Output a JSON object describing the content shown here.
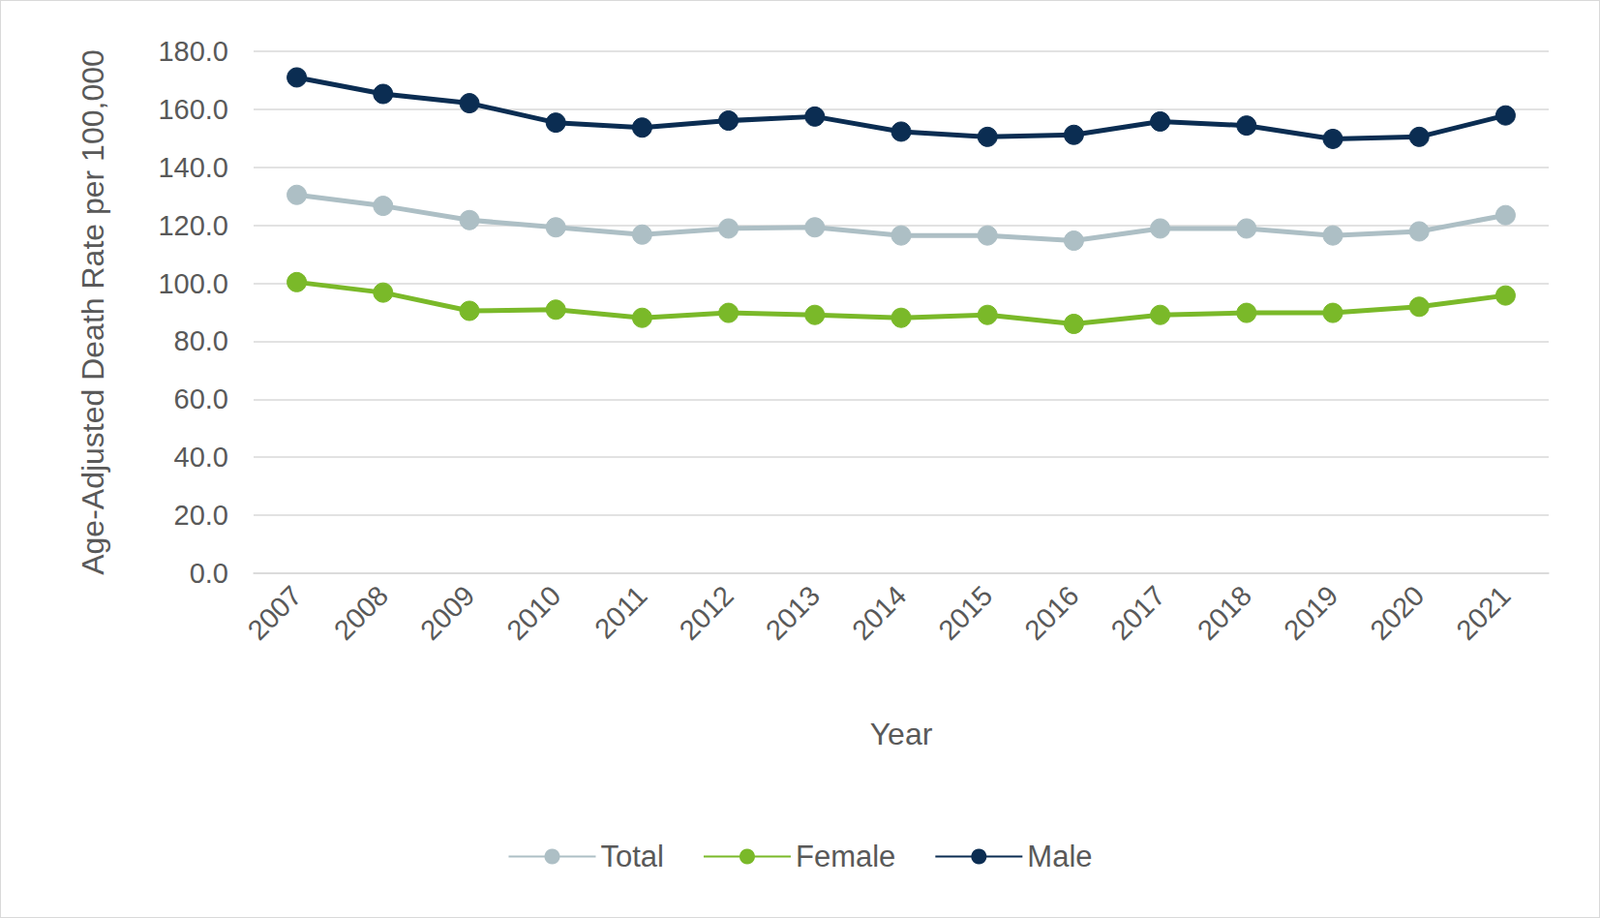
{
  "chart_data": {
    "type": "line",
    "x_label": "Year",
    "y_label": "Age-Adjusted Death Rate per 100,000",
    "categories": [
      "2007",
      "2008",
      "2009",
      "2010",
      "2011",
      "2012",
      "2013",
      "2014",
      "2015",
      "2016",
      "2017",
      "2018",
      "2019",
      "2020",
      "2021"
    ],
    "series": [
      {
        "name": "Total",
        "color": "#adbfc5",
        "marker": "circle",
        "line_style": "solid",
        "values": [
          130.5,
          126.7,
          121.8,
          119.3,
          116.8,
          118.9,
          119.3,
          116.5,
          116.5,
          114.7,
          118.9,
          118.9,
          116.5,
          117.9,
          123.5
        ]
      },
      {
        "name": "Female",
        "color": "#7ab929",
        "marker": "circle",
        "line_style": "solid",
        "values": [
          100.4,
          96.8,
          90.5,
          90.9,
          88.1,
          89.8,
          89.1,
          88.1,
          89.1,
          86.0,
          89.1,
          89.8,
          89.8,
          91.9,
          95.8
        ]
      },
      {
        "name": "Male",
        "color": "#0b2d52",
        "marker": "circle",
        "line_style": "solid",
        "values": [
          171.0,
          165.3,
          162.1,
          155.4,
          153.7,
          156.1,
          157.5,
          152.3,
          150.5,
          151.2,
          155.8,
          154.4,
          149.8,
          150.5,
          157.9
        ]
      }
    ],
    "ylim": [
      0,
      180
    ],
    "yticks": [
      {
        "value": 0,
        "label": "0.0"
      },
      {
        "value": 20,
        "label": "20.0"
      },
      {
        "value": 40,
        "label": "40.0"
      },
      {
        "value": 60,
        "label": "60.0"
      },
      {
        "value": 80,
        "label": "80.0"
      },
      {
        "value": 100,
        "label": "100.0"
      },
      {
        "value": 120,
        "label": "120.0"
      },
      {
        "value": 140,
        "label": "140.0"
      },
      {
        "value": 160,
        "label": "160.0"
      },
      {
        "value": 180,
        "label": "180.0"
      }
    ],
    "grid": true,
    "legend": "bottom"
  }
}
